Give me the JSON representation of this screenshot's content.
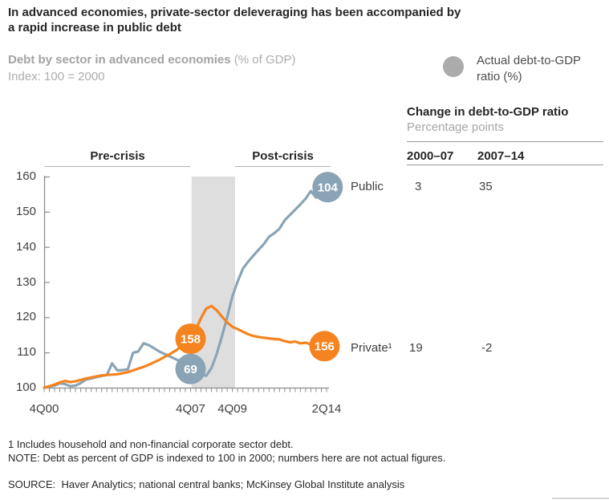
{
  "title": "In advanced economies, private-sector deleveraging has been accompanied by\na rapid increase in public debt",
  "subtitle": {
    "bold": "Debt by sector in advanced economies",
    "paren": " (% of GDP)",
    "index_note": "Index: 100 = 2000"
  },
  "legend": {
    "label": "Actual debt-to-GDP\nratio (%)",
    "circle_color": "#ABABAB"
  },
  "table": {
    "title": "Change in debt-to-GDP ratio",
    "subtitle": "Percentage points",
    "col1": "2000–07",
    "col2": "2007–14",
    "rows": [
      {
        "label": "Public",
        "col1": "3",
        "col2": "35"
      },
      {
        "label": "Private¹",
        "col1": "19",
        "col2": "-2"
      }
    ]
  },
  "chart_data": {
    "type": "line",
    "title": "Debt by sector in advanced economies (% of GDP)",
    "index_note": "Index: 100 = 2000",
    "x_unit": "quarters since 4Q00",
    "qmax": 54,
    "ylim": [
      100,
      160
    ],
    "y_ticks": [
      100,
      110,
      120,
      130,
      140,
      150,
      160
    ],
    "x_tick_labels": [
      {
        "label": "4Q00",
        "q": 0
      },
      {
        "label": "4Q07",
        "q": 28
      },
      {
        "label": "4Q09",
        "q": 36
      },
      {
        "label": "2Q14",
        "q": 54
      }
    ],
    "recession_band_q": [
      28.2,
      36.5
    ],
    "band_color": "#DEDEDE",
    "period_labels": [
      {
        "label": "Pre-crisis",
        "q_range": [
          0.1,
          28
        ]
      },
      {
        "label": "Post-crisis",
        "q_range": [
          36.5,
          54.8
        ]
      }
    ],
    "series": [
      {
        "name": "Public",
        "color": "#8AA4B5",
        "values": [
          100,
          100.3,
          100.6,
          101.2,
          101.0,
          100.4,
          100.6,
          101.3,
          102.3,
          102.6,
          103.0,
          103.3,
          103.6,
          106.9,
          104.9,
          105.0,
          105.2,
          109.9,
          110.3,
          112.6,
          112.1,
          111.2,
          110.3,
          109.6,
          108.9,
          108.2,
          107.5,
          106.8,
          106.2,
          104.6,
          103.7,
          103.4,
          105.6,
          109.6,
          114.6,
          120.0,
          126.0,
          130.2,
          133.8,
          135.8,
          137.5,
          139.2,
          140.8,
          142.9,
          143.9,
          145.2,
          147.6,
          149.1,
          150.6,
          152.1,
          153.7,
          155.9,
          154.0,
          155.2,
          156.9
        ]
      },
      {
        "name": "Private¹",
        "color": "#F5831F",
        "values": [
          100,
          100.4,
          100.9,
          101.5,
          101.9,
          101.6,
          101.8,
          102.2,
          102.6,
          102.9,
          103.2,
          103.5,
          103.6,
          103.7,
          103.8,
          104.1,
          104.4,
          104.9,
          105.4,
          105.9,
          106.5,
          107.2,
          107.9,
          108.7,
          109.5,
          110.4,
          111.4,
          112.5,
          113.9,
          116.5,
          119.8,
          122.5,
          123.2,
          122.0,
          120.2,
          118.5,
          117.3,
          116.6,
          115.9,
          115.2,
          114.7,
          114.4,
          114.2,
          114.0,
          113.8,
          113.7,
          113.2,
          112.9,
          113.1,
          112.6,
          112.8,
          112.3,
          112.1,
          112.0,
          111.9
        ]
      }
    ],
    "markers": [
      {
        "series": "Private¹",
        "label": "158",
        "q": 28,
        "value": 113.9,
        "series_label": null
      },
      {
        "series": "Public",
        "label": "69",
        "q": 28,
        "value": 105.3,
        "series_label": null
      },
      {
        "series": "Public",
        "label": "104",
        "q": 54.2,
        "value": 157.0,
        "series_label": "Public"
      },
      {
        "series": "Private¹",
        "label": "156",
        "q": 53.6,
        "value": 111.8,
        "series_label": "Private¹"
      }
    ],
    "marker_meaning": "Actual debt-to-GDP ratio (%)"
  },
  "footnotes": {
    "line1": "1 Includes household and non-financial corporate sector debt.",
    "line2": "NOTE: Debt as percent of GDP is indexed to 100 in 2000; numbers here are not actual figures."
  },
  "source": "SOURCE:  Haver Analytics; national central banks; McKinsey Global Institute analysis"
}
